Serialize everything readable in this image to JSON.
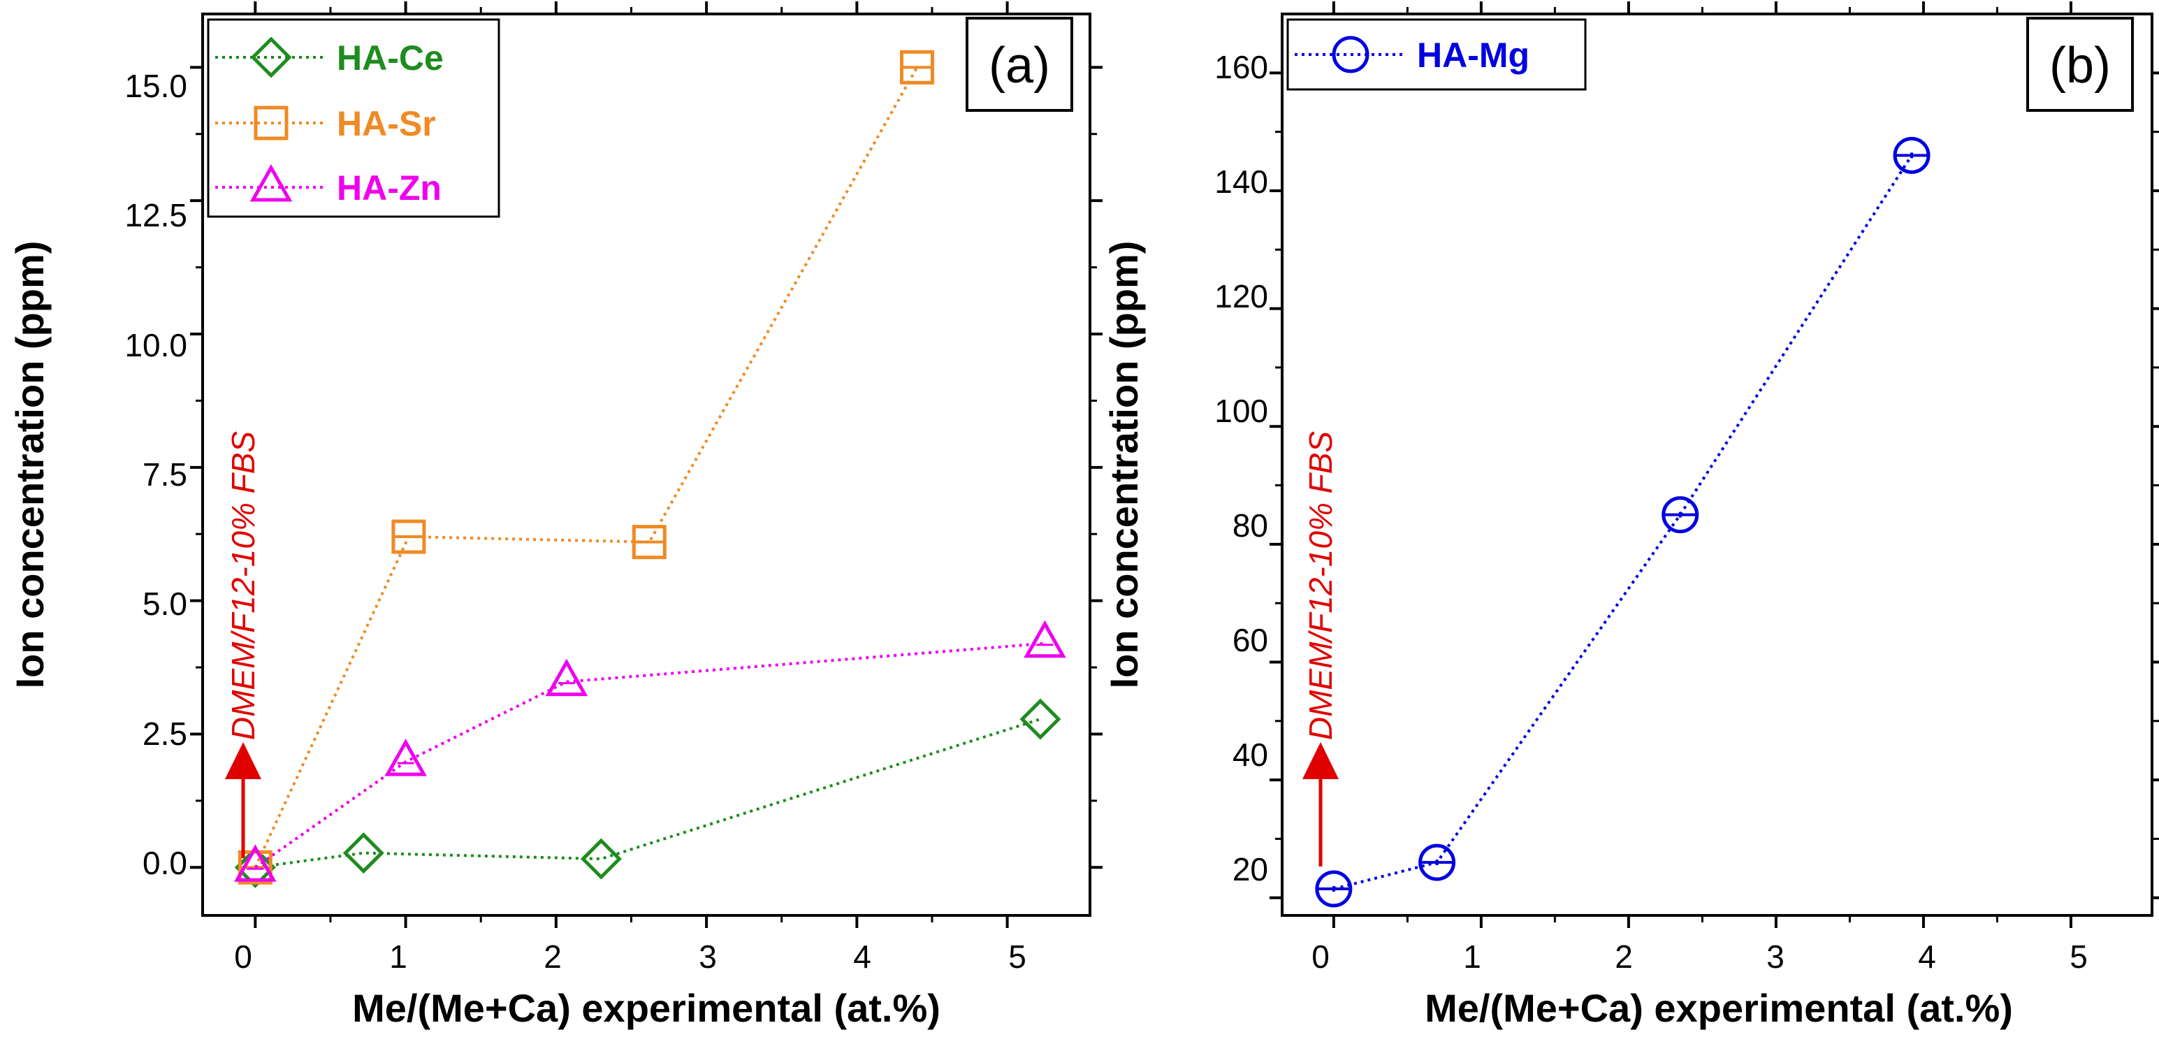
{
  "chart_data": [
    {
      "type": "line",
      "panel_label": "(a)",
      "xlabel": "Me/(Me+Ca) experimental (at.%)",
      "ylabel": "Ion concentration (ppm)",
      "xlim": [
        -0.35,
        5.55
      ],
      "ylim": [
        -0.9,
        16.0
      ],
      "xticks": [
        0,
        1,
        2,
        3,
        4,
        5
      ],
      "xtick_labels": [
        "0",
        "1",
        "2",
        "3",
        "4",
        "5"
      ],
      "yticks": [
        0,
        2.5,
        5,
        7.5,
        10,
        12.5,
        15
      ],
      "ytick_labels": [
        "0.0",
        "2.5",
        "5.0",
        "7.5",
        "10.0",
        "12.5",
        "15.0"
      ],
      "legend_position": "top-left",
      "annotation": {
        "text": "DMEM/F12-10% FBS",
        "x": 0,
        "y_from": 0,
        "y_to": 2.2,
        "color": "#e00000"
      },
      "series": [
        {
          "name": "HA-Ce",
          "color": "#1e8c1e",
          "marker": "diamond",
          "x": [
            0,
            0.72,
            2.3,
            5.22
          ],
          "y": [
            0,
            0.27,
            0.16,
            2.78
          ]
        },
        {
          "name": "HA-Sr",
          "color": "#f08a24",
          "marker": "square",
          "x": [
            0,
            1.02,
            2.62,
            4.4
          ],
          "y": [
            0,
            6.2,
            6.1,
            15.0
          ]
        },
        {
          "name": "HA-Zn",
          "color": "#ee00ee",
          "marker": "triangle",
          "x": [
            0,
            1.0,
            2.07,
            5.25
          ],
          "y": [
            0,
            1.98,
            3.48,
            4.2
          ]
        }
      ]
    },
    {
      "type": "line",
      "panel_label": "(b)",
      "xlabel": "Me/(Me+Ca) experimental (at.%)",
      "ylabel": "Ion concentration (ppm)",
      "xlim": [
        -0.35,
        5.55
      ],
      "ylim": [
        17,
        170
      ],
      "xticks": [
        0,
        1,
        2,
        3,
        4,
        5
      ],
      "xtick_labels": [
        "0",
        "1",
        "2",
        "3",
        "4",
        "5"
      ],
      "yticks": [
        20,
        40,
        60,
        80,
        100,
        120,
        140,
        160
      ],
      "ytick_labels": [
        "20",
        "40",
        "60",
        "80",
        "100",
        "120",
        "140",
        "160"
      ],
      "legend_position": "top-left",
      "annotation": {
        "text": "DMEM/F12-10% FBS",
        "x": 0,
        "y_from": 21.5,
        "y_to": 41,
        "color": "#e00000"
      },
      "series": [
        {
          "name": "HA-Mg",
          "color": "#0000e0",
          "marker": "circle",
          "x": [
            0,
            0.7,
            2.35,
            3.92
          ],
          "y": [
            21.5,
            26,
            85,
            146
          ]
        }
      ]
    }
  ]
}
